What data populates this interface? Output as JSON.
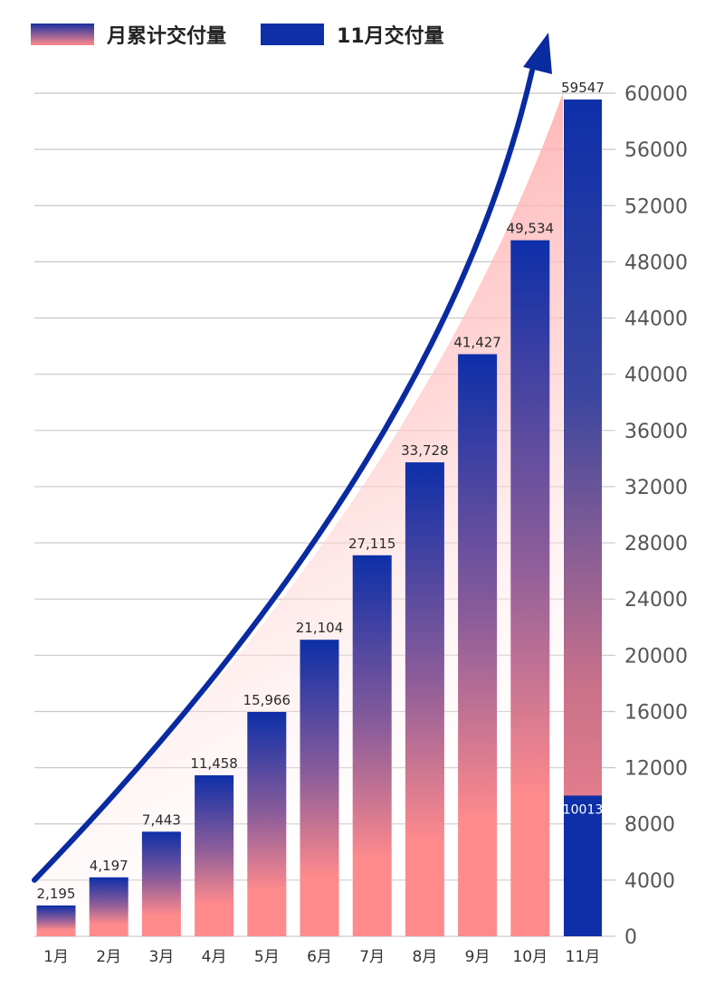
{
  "legend": {
    "cumulative_label": "月累计交付量",
    "november_label": "11月交付量"
  },
  "colors": {
    "pink": "#ff8a8c",
    "blue": "#0d2fa8",
    "arrow": "#0a2aa0",
    "grid": "#c8c8c8"
  },
  "chart_data": {
    "type": "bar",
    "categories": [
      "1月",
      "2月",
      "3月",
      "4月",
      "5月",
      "6月",
      "7月",
      "8月",
      "9月",
      "10月",
      "11月"
    ],
    "series": [
      {
        "name": "月累计交付量",
        "values": [
          2195,
          4197,
          7443,
          11458,
          15966,
          21104,
          27115,
          33728,
          41427,
          49534,
          59547
        ]
      },
      {
        "name": "11月交付量",
        "values": [
          null,
          null,
          null,
          null,
          null,
          null,
          null,
          null,
          null,
          null,
          10013
        ]
      }
    ],
    "data_labels": [
      "2,195",
      "4,197",
      "7,443",
      "11,458",
      "15,966",
      "21,104",
      "27,115",
      "33,728",
      "41,427",
      "49,534",
      "59547"
    ],
    "november_label": "10013",
    "yticks": [
      "0",
      "4000",
      "8000",
      "12000",
      "16000",
      "20000",
      "24000",
      "28000",
      "32000",
      "36000",
      "40000",
      "44000",
      "48000",
      "52000",
      "56000",
      "60000"
    ],
    "ylim": [
      0,
      60000
    ],
    "y_axis_side": "right",
    "grid": true,
    "legend_position": "top-left"
  }
}
